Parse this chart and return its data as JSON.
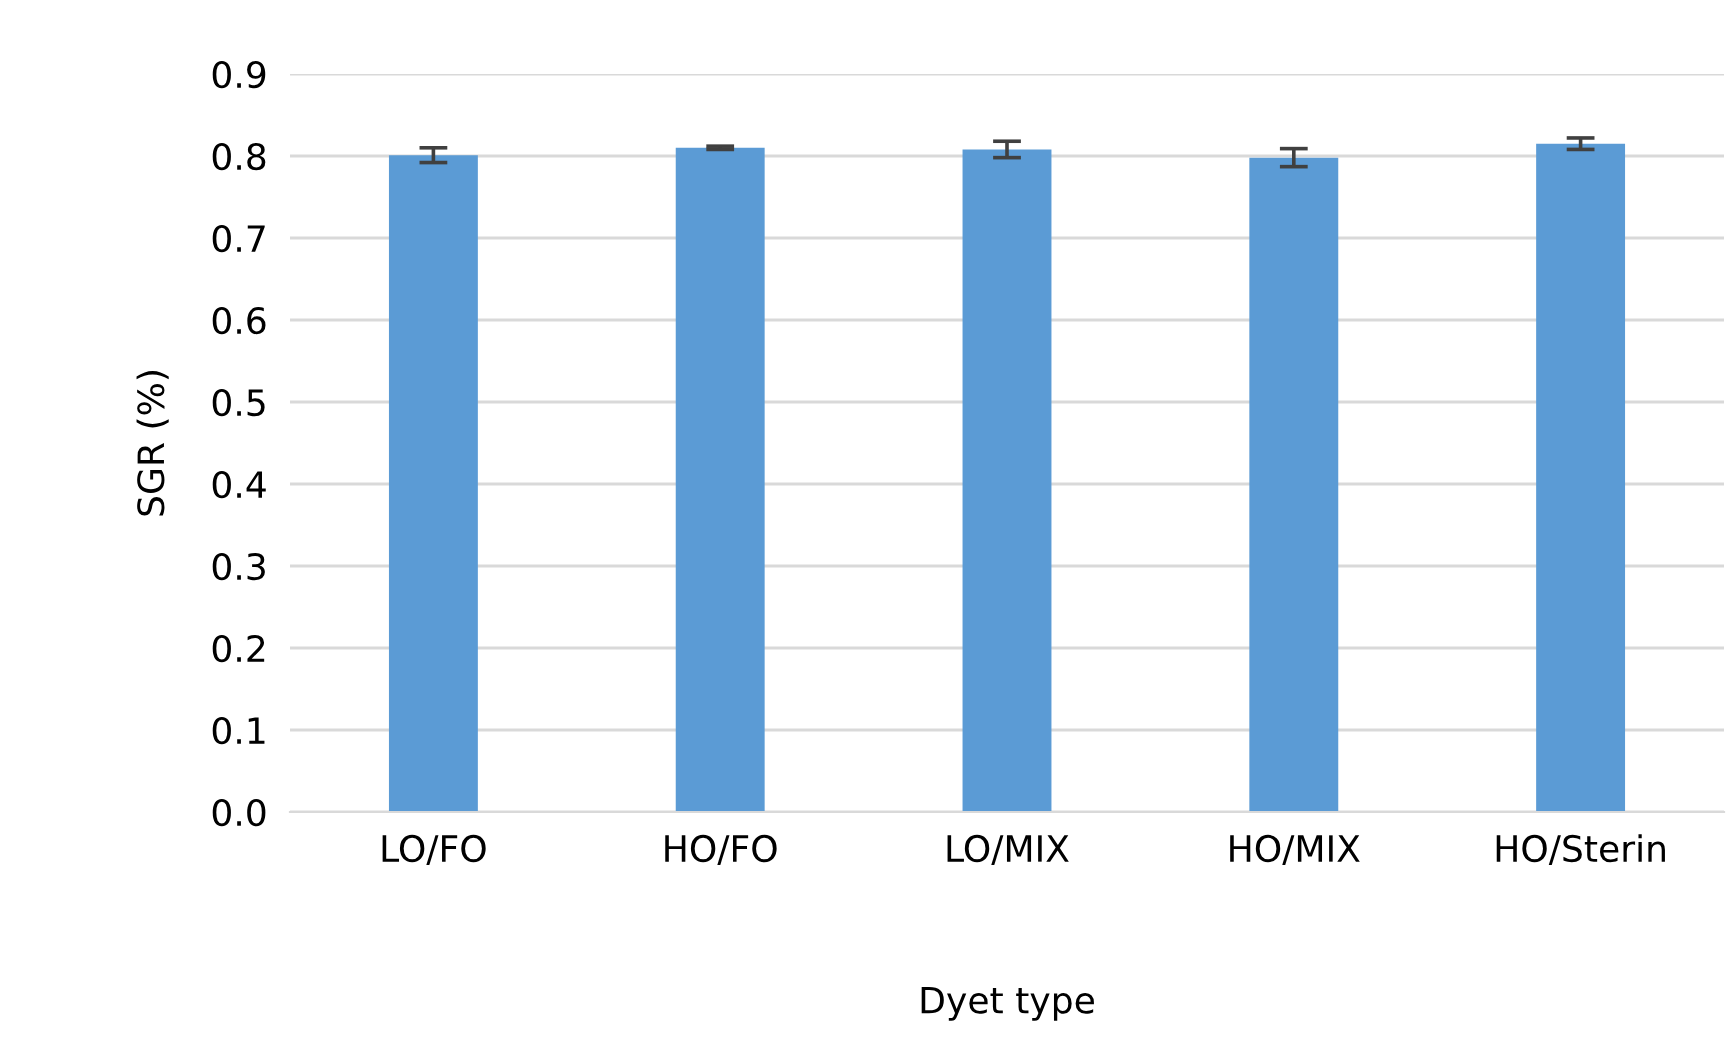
{
  "chart_data": {
    "type": "bar",
    "xlabel": "Dyet type",
    "ylabel": "SGR (%)",
    "categories": [
      "LO/FO",
      "HO/FO",
      "LO/MIX",
      "HO/MIX",
      "HO/Sterin"
    ],
    "values": [
      0.801,
      0.81,
      0.808,
      0.798,
      0.815
    ],
    "errors": [
      0.009,
      0.002,
      0.01,
      0.011,
      0.007
    ],
    "color": "#5b9bd5",
    "ylim": [
      0,
      0.9
    ],
    "yticks": [
      {
        "value": 0,
        "label": "0.0"
      },
      0.1,
      0.2,
      0.3,
      0.4,
      0.5,
      0.6,
      0.7,
      0.8,
      0.9
    ],
    "grid": "y"
  }
}
